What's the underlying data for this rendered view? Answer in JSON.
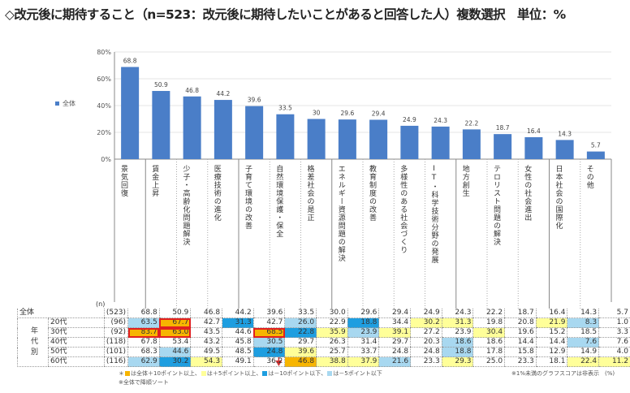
{
  "title": "◇改元後に期待すること（n=523：改元後に期待したいことがあると回答した人）複数選択　単位：%",
  "chart_data": {
    "type": "bar",
    "categories": [
      "景気回復",
      "賃金上昇",
      "少子・高齢化問題解決",
      "医療技術の進化",
      "子育て環境の改善",
      "自然環境保護・保全",
      "格差社会の是正",
      "エネルギー資源問題の解決",
      "教育制度の改善",
      "多様性のある社会づくり",
      "IT・科学技術分野の発展",
      "地方創生",
      "テロリスト問題の解決",
      "女性の社会進出",
      "日本社会の国際化",
      "その他"
    ],
    "series": [
      {
        "name": "全体",
        "values": [
          68.8,
          50.9,
          46.8,
          44.2,
          39.6,
          33.5,
          30.0,
          29.6,
          29.4,
          24.9,
          24.3,
          22.2,
          18.7,
          16.4,
          14.3,
          5.7
        ]
      }
    ],
    "ylim": [
      0,
      80
    ],
    "yticks": [
      "0%",
      "20%",
      "40%",
      "60%",
      "80%"
    ],
    "legend": "left",
    "bar_color": "#4a7ec8",
    "grid": true
  },
  "table": {
    "n_header": "(n)",
    "group_label": "年代別",
    "rows": [
      {
        "label": "全体",
        "n": "(523)",
        "values": [
          "68.8",
          "50.9",
          "46.8",
          "44.2",
          "39.6",
          "33.5",
          "30.0",
          "29.6",
          "29.4",
          "24.9",
          "24.3",
          "22.2",
          "18.7",
          "16.4",
          "14.3",
          "5.7"
        ],
        "marks": "----------------",
        "red": []
      },
      {
        "label": "20代",
        "n": "(96)",
        "values": [
          "63.5",
          "67.7",
          "42.7",
          "31.3",
          "42.7",
          "26.0",
          "22.9",
          "18.8",
          "34.4",
          "30.2",
          "31.3",
          "19.8",
          "20.8",
          "21.9",
          "8.3",
          "1.0"
        ],
        "marks": "lo-b-l-b-yy--yl-",
        "red": [
          1
        ]
      },
      {
        "label": "30代",
        "n": "(92)",
        "values": [
          "83.7",
          "63.0",
          "43.5",
          "44.6",
          "68.5",
          "22.8",
          "35.9",
          "23.9",
          "39.1",
          "27.2",
          "23.9",
          "30.4",
          "19.6",
          "15.2",
          "18.5",
          "3.3"
        ],
        "marks": "oo--obyly--y----",
        "red": [
          0,
          1,
          4
        ]
      },
      {
        "label": "40代",
        "n": "(118)",
        "values": [
          "67.8",
          "53.4",
          "43.2",
          "45.8",
          "30.5",
          "29.7",
          "26.3",
          "31.4",
          "29.7",
          "20.3",
          "18.6",
          "18.6",
          "14.4",
          "14.4",
          "7.6",
          "7.6"
        ],
        "marks": "----l-----l---l-",
        "red": []
      },
      {
        "label": "50代",
        "n": "(101)",
        "values": [
          "68.3",
          "44.6",
          "49.5",
          "48.5",
          "24.8",
          "39.6",
          "25.7",
          "33.7",
          "24.8",
          "24.8",
          "18.8",
          "17.8",
          "15.8",
          "12.9",
          "14.9",
          "4.0"
        ],
        "marks": "-l--by----l-----",
        "red": []
      },
      {
        "label": "60代",
        "n": "(116)",
        "values": [
          "62.9",
          "30.2",
          "54.3",
          "49.1",
          "36.2",
          "46.8",
          "38.8",
          "37.9",
          "21.6",
          "23.3",
          "29.3",
          "25.0",
          "23.3",
          "18.1",
          "22.4",
          "11.2"
        ],
        "marks": "lby--oyyl-y---yy",
        "red": []
      }
    ],
    "colors": {
      "o": "#f7b500",
      "y": "#ffff99",
      "b": "#1e9ee0",
      "l": "#a8d8f0"
    }
  },
  "notes": {
    "legend_prefix": "＊",
    "plus10": "は全体＋10ポイント以上、",
    "plus5": "は＋5ポイント以上、",
    "minus10": "は－10ポイント以下、",
    "minus5": "は－5ポイント以下",
    "sort": "※全体で降順ソート",
    "hidden": "※1%未満のグラフスコアは非表示　(%)"
  }
}
